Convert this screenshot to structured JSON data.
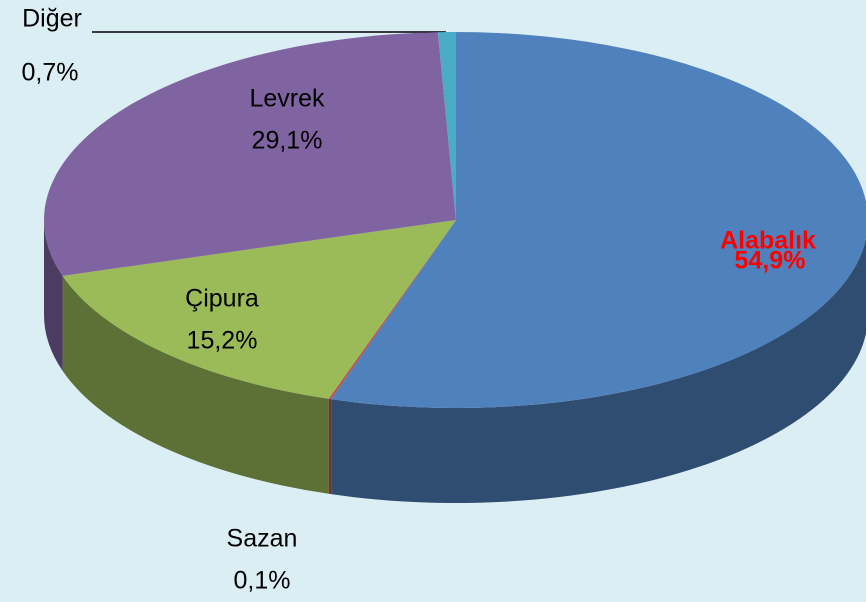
{
  "chart_data": {
    "type": "pie3d",
    "categories": [
      "Alabalık",
      "Sazan",
      "Çipura",
      "Levrek",
      "Diğer"
    ],
    "values": [
      54.9,
      0.1,
      15.2,
      29.1,
      0.7
    ],
    "value_labels": [
      "54,9%",
      "0,1%",
      "15,2%",
      "29,1%",
      "0,7%"
    ],
    "colors": [
      "#4f81bd",
      "#c0504d",
      "#9bbb59",
      "#8064a2",
      "#4bacc6"
    ],
    "label_colors": [
      "#ff0000",
      "#000000",
      "#000000",
      "#000000",
      "#000000"
    ]
  }
}
